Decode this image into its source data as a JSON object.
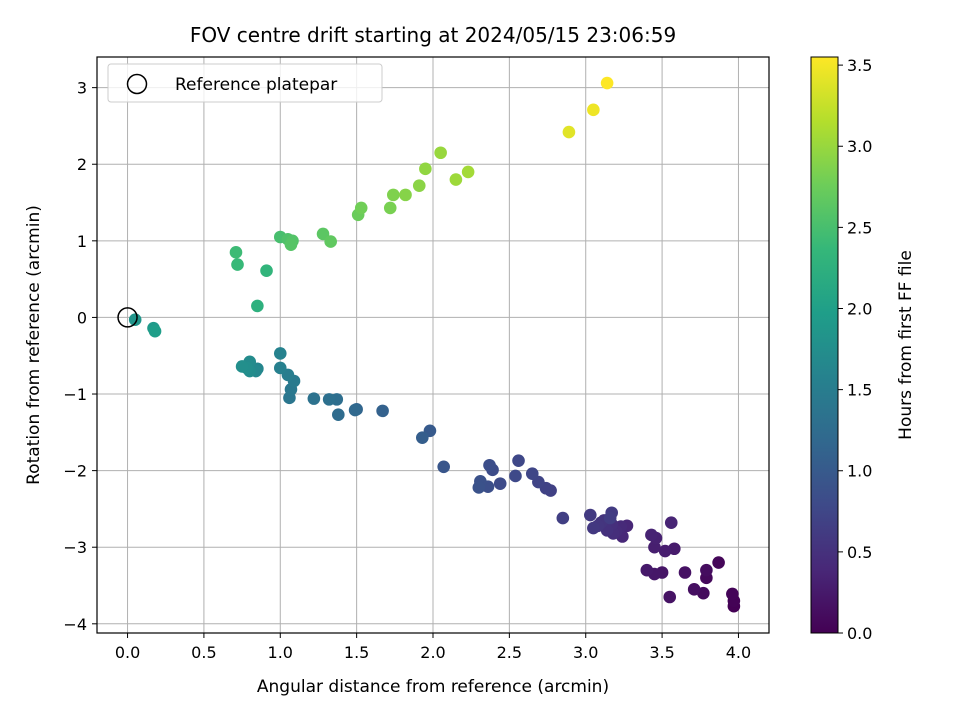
{
  "chart_data": {
    "type": "scatter",
    "title": "FOV centre drift starting at 2024/05/15 23:06:59",
    "xlabel": "Angular distance from reference (arcmin)",
    "ylabel": "Rotation from reference (arcmin)",
    "xlim": [
      -0.2,
      4.2
    ],
    "ylim": [
      -4.12,
      3.4
    ],
    "xticks": [
      0.0,
      0.5,
      1.0,
      1.5,
      2.0,
      2.5,
      3.0,
      3.5,
      4.0
    ],
    "xtick_labels": [
      "0.0",
      "0.5",
      "1.0",
      "1.5",
      "2.0",
      "2.5",
      "3.0",
      "3.5",
      "4.0"
    ],
    "yticks": [
      -4,
      -3,
      -2,
      -1,
      0,
      1,
      2,
      3
    ],
    "ytick_labels": [
      "−4",
      "−3",
      "−2",
      "−1",
      "0",
      "1",
      "2",
      "3"
    ],
    "grid": true,
    "legend": {
      "position": "top-left",
      "entries": [
        {
          "label": "Reference platepar",
          "marker": "open-circle",
          "x": 0,
          "y": 0
        }
      ]
    },
    "colorbar": {
      "label": "Hours from first FF file",
      "colormap": "viridis",
      "range": [
        0.0,
        3.55
      ],
      "ticks": [
        0.0,
        0.5,
        1.0,
        1.5,
        2.0,
        2.5,
        3.0,
        3.5
      ],
      "tick_labels": [
        "0.0",
        "0.5",
        "1.0",
        "1.5",
        "2.0",
        "2.5",
        "3.0",
        "3.5"
      ]
    },
    "points": [
      {
        "x": 3.97,
        "y": -3.77,
        "c": 0.0
      },
      {
        "x": 3.97,
        "y": -3.7,
        "c": 0.02
      },
      {
        "x": 3.96,
        "y": -3.61,
        "c": 0.04
      },
      {
        "x": 3.87,
        "y": -3.2,
        "c": 0.06
      },
      {
        "x": 3.79,
        "y": -3.4,
        "c": 0.08
      },
      {
        "x": 3.77,
        "y": -3.6,
        "c": 0.1
      },
      {
        "x": 3.79,
        "y": -3.3,
        "c": 0.12
      },
      {
        "x": 3.71,
        "y": -3.55,
        "c": 0.14
      },
      {
        "x": 3.65,
        "y": -3.33,
        "c": 0.16
      },
      {
        "x": 3.55,
        "y": -3.65,
        "c": 0.18
      },
      {
        "x": 3.5,
        "y": -3.33,
        "c": 0.2
      },
      {
        "x": 3.45,
        "y": -3.35,
        "c": 0.22
      },
      {
        "x": 3.4,
        "y": -3.3,
        "c": 0.24
      },
      {
        "x": 3.58,
        "y": -3.02,
        "c": 0.26
      },
      {
        "x": 3.52,
        "y": -3.05,
        "c": 0.28
      },
      {
        "x": 3.45,
        "y": -3.0,
        "c": 0.3
      },
      {
        "x": 3.46,
        "y": -2.88,
        "c": 0.32
      },
      {
        "x": 3.43,
        "y": -2.84,
        "c": 0.34
      },
      {
        "x": 3.56,
        "y": -2.68,
        "c": 0.36
      },
      {
        "x": 3.27,
        "y": -2.72,
        "c": 0.38
      },
      {
        "x": 3.24,
        "y": -2.86,
        "c": 0.4
      },
      {
        "x": 3.23,
        "y": -2.73,
        "c": 0.42
      },
      {
        "x": 3.2,
        "y": -2.79,
        "c": 0.44
      },
      {
        "x": 3.18,
        "y": -2.82,
        "c": 0.46
      },
      {
        "x": 3.17,
        "y": -2.7,
        "c": 0.48
      },
      {
        "x": 3.14,
        "y": -2.78,
        "c": 0.5
      },
      {
        "x": 3.12,
        "y": -2.65,
        "c": 0.52
      },
      {
        "x": 3.1,
        "y": -2.68,
        "c": 0.54
      },
      {
        "x": 3.08,
        "y": -2.72,
        "c": 0.56
      },
      {
        "x": 3.05,
        "y": -2.75,
        "c": 0.58
      },
      {
        "x": 3.03,
        "y": -2.58,
        "c": 0.6
      },
      {
        "x": 3.17,
        "y": -2.55,
        "c": 0.62
      },
      {
        "x": 3.16,
        "y": -2.62,
        "c": 0.64
      },
      {
        "x": 2.85,
        "y": -2.62,
        "c": 0.66
      },
      {
        "x": 2.77,
        "y": -2.26,
        "c": 0.68
      },
      {
        "x": 2.74,
        "y": -2.23,
        "c": 0.7
      },
      {
        "x": 2.69,
        "y": -2.15,
        "c": 0.72
      },
      {
        "x": 2.65,
        "y": -2.04,
        "c": 0.74
      },
      {
        "x": 2.56,
        "y": -1.87,
        "c": 0.76
      },
      {
        "x": 2.54,
        "y": -2.07,
        "c": 0.78
      },
      {
        "x": 2.44,
        "y": -2.17,
        "c": 0.8
      },
      {
        "x": 2.39,
        "y": -1.99,
        "c": 0.82
      },
      {
        "x": 2.37,
        "y": -1.93,
        "c": 0.84
      },
      {
        "x": 2.36,
        "y": -2.21,
        "c": 0.86
      },
      {
        "x": 2.31,
        "y": -2.14,
        "c": 0.88
      },
      {
        "x": 2.3,
        "y": -2.22,
        "c": 0.9
      },
      {
        "x": 2.07,
        "y": -1.95,
        "c": 0.95
      },
      {
        "x": 1.98,
        "y": -1.48,
        "c": 1.0
      },
      {
        "x": 1.93,
        "y": -1.57,
        "c": 1.05
      },
      {
        "x": 1.67,
        "y": -1.22,
        "c": 1.1
      },
      {
        "x": 1.5,
        "y": -1.2,
        "c": 1.15
      },
      {
        "x": 1.49,
        "y": -1.21,
        "c": 1.2
      },
      {
        "x": 1.38,
        "y": -1.27,
        "c": 1.25
      },
      {
        "x": 1.37,
        "y": -1.07,
        "c": 1.28
      },
      {
        "x": 1.32,
        "y": -1.07,
        "c": 1.31
      },
      {
        "x": 1.22,
        "y": -1.06,
        "c": 1.34
      },
      {
        "x": 1.06,
        "y": -1.05,
        "c": 1.4
      },
      {
        "x": 1.07,
        "y": -0.94,
        "c": 1.43
      },
      {
        "x": 1.09,
        "y": -0.83,
        "c": 1.46
      },
      {
        "x": 1.05,
        "y": -0.75,
        "c": 1.5
      },
      {
        "x": 1.0,
        "y": -0.66,
        "c": 1.54
      },
      {
        "x": 1.0,
        "y": -0.47,
        "c": 1.58
      },
      {
        "x": 0.85,
        "y": -0.67,
        "c": 1.62
      },
      {
        "x": 0.84,
        "y": -0.7,
        "c": 1.66
      },
      {
        "x": 0.8,
        "y": -0.58,
        "c": 1.7
      },
      {
        "x": 0.8,
        "y": -0.7,
        "c": 1.72
      },
      {
        "x": 0.78,
        "y": -0.66,
        "c": 1.74
      },
      {
        "x": 0.75,
        "y": -0.64,
        "c": 1.76
      },
      {
        "x": 0.05,
        "y": -0.03,
        "c": 1.85
      },
      {
        "x": 0.17,
        "y": -0.14,
        "c": 1.92
      },
      {
        "x": 0.18,
        "y": -0.18,
        "c": 1.98
      },
      {
        "x": 0.85,
        "y": 0.15,
        "c": 2.25
      },
      {
        "x": 0.91,
        "y": 0.61,
        "c": 2.32
      },
      {
        "x": 0.72,
        "y": 0.69,
        "c": 2.38
      },
      {
        "x": 0.71,
        "y": 0.85,
        "c": 2.42
      },
      {
        "x": 1.0,
        "y": 1.05,
        "c": 2.5
      },
      {
        "x": 1.05,
        "y": 1.02,
        "c": 2.55
      },
      {
        "x": 1.08,
        "y": 1.0,
        "c": 2.58
      },
      {
        "x": 1.07,
        "y": 0.95,
        "c": 2.6
      },
      {
        "x": 1.28,
        "y": 1.09,
        "c": 2.64
      },
      {
        "x": 1.33,
        "y": 0.99,
        "c": 2.68
      },
      {
        "x": 1.51,
        "y": 1.34,
        "c": 2.74
      },
      {
        "x": 1.53,
        "y": 1.43,
        "c": 2.78
      },
      {
        "x": 1.72,
        "y": 1.43,
        "c": 2.82
      },
      {
        "x": 1.74,
        "y": 1.6,
        "c": 2.86
      },
      {
        "x": 1.82,
        "y": 1.6,
        "c": 2.9
      },
      {
        "x": 1.91,
        "y": 1.72,
        "c": 2.93
      },
      {
        "x": 1.95,
        "y": 1.94,
        "c": 2.96
      },
      {
        "x": 2.05,
        "y": 2.15,
        "c": 3.0
      },
      {
        "x": 2.15,
        "y": 1.8,
        "c": 3.03
      },
      {
        "x": 2.23,
        "y": 1.9,
        "c": 3.06
      },
      {
        "x": 2.89,
        "y": 2.42,
        "c": 3.4
      },
      {
        "x": 3.05,
        "y": 2.71,
        "c": 3.47
      },
      {
        "x": 3.14,
        "y": 3.06,
        "c": 3.55
      }
    ]
  }
}
